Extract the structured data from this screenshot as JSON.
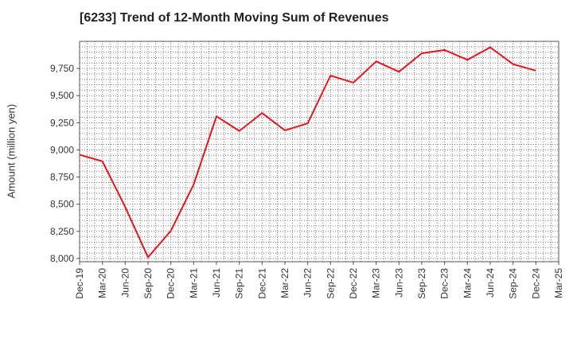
{
  "chart_data": {
    "type": "line",
    "title": "[6233]  Trend of 12-Month Moving Sum of Revenues",
    "ylabel": "Amount (million yen)",
    "xlabel": "",
    "grid": true,
    "categories": [
      "Dec-19",
      "Mar-20",
      "Jun-20",
      "Sep-20",
      "Dec-20",
      "Mar-21",
      "Jun-21",
      "Sep-21",
      "Dec-21",
      "Mar-22",
      "Jun-22",
      "Sep-22",
      "Dec-22",
      "Mar-23",
      "Jun-23",
      "Sep-23",
      "Dec-23",
      "Mar-24",
      "Jun-24",
      "Sep-24",
      "Dec-24",
      "Mar-25"
    ],
    "ylim": [
      7970,
      10000
    ],
    "yticks": [
      8000,
      8250,
      8500,
      8750,
      9000,
      9250,
      9500,
      9750
    ],
    "ytick_labels": [
      "8,000",
      "8,250",
      "8,500",
      "8,750",
      "9,000",
      "9,250",
      "9,500",
      "9,750"
    ],
    "series": [
      {
        "color": "#e8141c",
        "values": [
          8955,
          8895,
          8475,
          8010,
          8255,
          8680,
          9310,
          9175,
          9340,
          9180,
          9245,
          9685,
          9620,
          9815,
          9720,
          9890,
          9920,
          9830,
          9945,
          9790,
          9730,
          null
        ]
      }
    ]
  }
}
